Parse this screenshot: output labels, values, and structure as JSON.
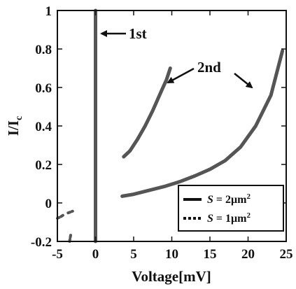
{
  "chart_data": {
    "type": "line",
    "xlabel": "Voltage[mV]",
    "ylabel_main": "I/I",
    "ylabel_sub": "c",
    "xlim": [
      -5,
      25
    ],
    "ylim": [
      -0.2,
      1
    ],
    "xticks": [
      -5,
      0,
      5,
      10,
      15,
      20,
      25
    ],
    "xtick_labels": [
      "-5",
      "0",
      "5",
      "10",
      "15",
      "20",
      "25"
    ],
    "yticks": [
      -0.2,
      0,
      0.2,
      0.4,
      0.6,
      0.8,
      1
    ],
    "ytick_labels": [
      "-0.2",
      "0",
      "0.2",
      "0.4",
      "0.6",
      "0.8",
      "1"
    ],
    "grid": false,
    "series": [
      {
        "name": "S = 2μm²",
        "style": "solid",
        "color": "#555555",
        "segments": [
          [
            [
              0,
              -0.2
            ],
            [
              0,
              1.0
            ]
          ],
          [
            [
              3.7,
              0.24
            ],
            [
              4.5,
              0.27
            ],
            [
              5.5,
              0.33
            ],
            [
              6.5,
              0.4
            ],
            [
              7.5,
              0.48
            ],
            [
              8.5,
              0.57
            ],
            [
              9.3,
              0.64
            ],
            [
              9.8,
              0.7
            ]
          ],
          [
            [
              3.5,
              0.035
            ],
            [
              5,
              0.045
            ],
            [
              7,
              0.065
            ],
            [
              9,
              0.085
            ],
            [
              11,
              0.11
            ],
            [
              13,
              0.14
            ],
            [
              15,
              0.175
            ],
            [
              17,
              0.22
            ],
            [
              19,
              0.29
            ],
            [
              21,
              0.4
            ],
            [
              23,
              0.56
            ],
            [
              24.5,
              0.79
            ]
          ]
        ]
      },
      {
        "name": "S = 1μm²",
        "style": "dotted",
        "color": "#555555",
        "segments": [
          [
            [
              -5,
              -0.08
            ],
            [
              -4.5,
              -0.07
            ],
            [
              -4.1,
              -0.06
            ]
          ],
          [
            [
              -3.6,
              -0.052
            ],
            [
              -3.0,
              -0.043
            ]
          ],
          [
            [
              -3.4,
              -0.2
            ],
            [
              -3.25,
              -0.165
            ]
          ]
        ]
      }
    ],
    "annotations": [
      {
        "text": "1st",
        "target": [
          0.3,
          0.94
        ]
      },
      {
        "text": "2nd",
        "targets": [
          [
            9.3,
            0.63
          ],
          [
            21.4,
            0.6
          ]
        ]
      }
    ],
    "legend": {
      "position": "bottom-right",
      "entries": [
        {
          "prefix": "S",
          "eq": " = 2",
          "mu": "μ",
          "unit": "m",
          "sup": "2",
          "style": "solid"
        },
        {
          "prefix": "S",
          "eq": " = 1",
          "mu": "μ",
          "unit": "m",
          "sup": "2",
          "style": "dotted"
        }
      ]
    }
  }
}
